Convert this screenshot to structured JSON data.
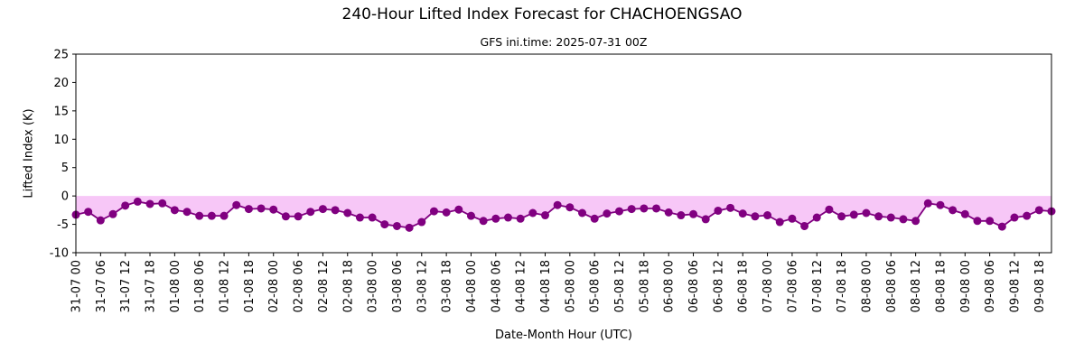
{
  "chart_data": {
    "type": "line",
    "title": "240-Hour Lifted Index Forecast for CHACHOENGSAO",
    "subtitle": "GFS ini.time: 2025-07-31 00Z",
    "xlabel": "Date-Month Hour (UTC)",
    "ylabel": "Lifted Index (K)",
    "ylim": [
      -10,
      25
    ],
    "yticks": [
      -10,
      -5,
      0,
      5,
      10,
      15,
      20,
      25
    ],
    "x_start": "2025-07-31 00Z",
    "x_step_hours": 3,
    "xticks": [
      "31-07 00",
      "31-07 06",
      "31-07 12",
      "31-07 18",
      "01-08 00",
      "01-08 06",
      "01-08 12",
      "01-08 18",
      "02-08 00",
      "02-08 06",
      "02-08 12",
      "02-08 18",
      "03-08 00",
      "03-08 06",
      "03-08 12",
      "03-08 18",
      "04-08 00",
      "04-08 06",
      "04-08 12",
      "04-08 18",
      "05-08 00",
      "05-08 06",
      "05-08 12",
      "05-08 18",
      "06-08 00",
      "06-08 06",
      "06-08 12",
      "06-08 18",
      "07-08 00",
      "07-08 06",
      "07-08 12",
      "07-08 18",
      "08-08 00",
      "08-08 06",
      "08-08 12",
      "08-08 18",
      "09-08 00",
      "09-08 06",
      "09-08 12",
      "09-08 18"
    ],
    "series": [
      {
        "name": "",
        "color": "#800080",
        "fill_color": "#ee82ee",
        "values": [
          -3.3,
          -2.8,
          -4.3,
          -3.2,
          -1.7,
          -1.0,
          -1.4,
          -1.3,
          -2.5,
          -2.8,
          -3.5,
          -3.5,
          -3.5,
          -1.6,
          -2.3,
          -2.2,
          -2.4,
          -3.6,
          -3.6,
          -2.8,
          -2.3,
          -2.5,
          -3.0,
          -3.8,
          -3.8,
          -5.0,
          -5.3,
          -5.6,
          -4.6,
          -2.7,
          -2.9,
          -2.4,
          -3.5,
          -4.4,
          -4.0,
          -3.8,
          -4.0,
          -3.0,
          -3.4,
          -1.6,
          -2.0,
          -3.0,
          -4.0,
          -3.1,
          -2.7,
          -2.3,
          -2.2,
          -2.2,
          -2.9,
          -3.4,
          -3.2,
          -4.1,
          -2.6,
          -2.1,
          -3.1,
          -3.6,
          -3.4,
          -4.6,
          -4.0,
          -5.3,
          -3.8,
          -2.4,
          -3.6,
          -3.3,
          -3.0,
          -3.6,
          -3.8,
          -4.1,
          -4.4,
          -1.3,
          -1.6,
          -2.5,
          -3.2,
          -4.4,
          -4.4,
          -5.4,
          -3.8,
          -3.5,
          -2.5,
          -2.7
        ]
      }
    ]
  }
}
